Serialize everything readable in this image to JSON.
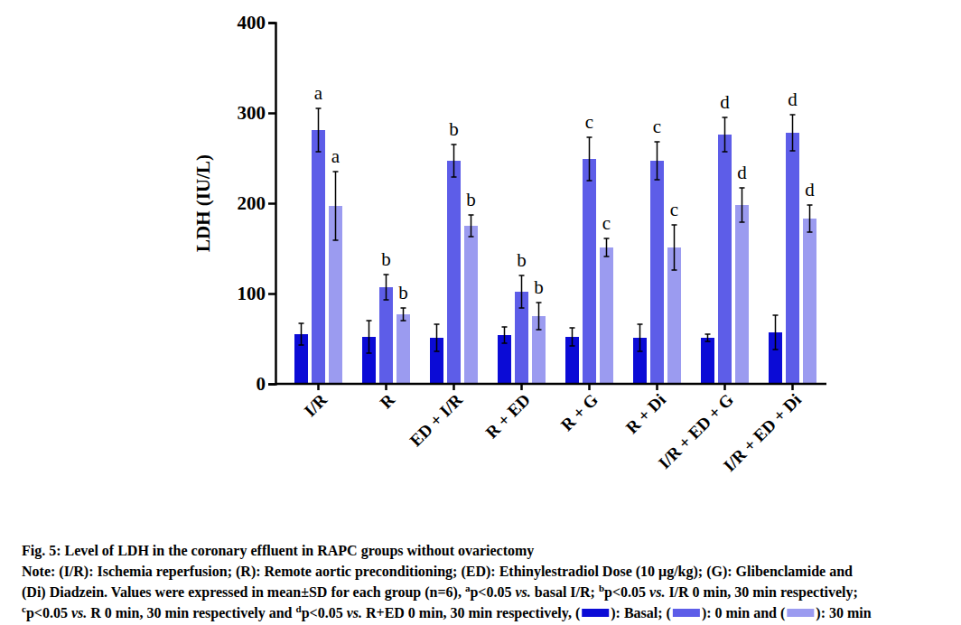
{
  "chart_data": {
    "type": "bar",
    "title": "Fig. 5: Level of LDH in the coronary effluent in RAPC groups without ovariectomy",
    "y_label": "LDH (IU/L)",
    "categories": [
      "I/R",
      "R",
      "ED + I/R",
      "R + ED",
      "R + G",
      "R + Di",
      "I/R + ED + G",
      "I/R + ED + Di"
    ],
    "series": [
      {
        "name": "Basal",
        "color": "#0b0bd6",
        "values": [
          55,
          52,
          51,
          54,
          52,
          51,
          51,
          57
        ],
        "errors": [
          12,
          18,
          15,
          9,
          10,
          15,
          4,
          19
        ]
      },
      {
        "name": "0 min",
        "color": "#5d5de8",
        "values": [
          281,
          107,
          247,
          102,
          249,
          247,
          276,
          278
        ],
        "errors": [
          24,
          14,
          18,
          18,
          24,
          21,
          19,
          20
        ],
        "significance": [
          "a",
          "b",
          "b",
          "b",
          "c",
          "c",
          "d",
          "d"
        ]
      },
      {
        "name": "30 min",
        "color": "#9b9bf0",
        "values": [
          197,
          77,
          175,
          75,
          151,
          151,
          198,
          183
        ],
        "errors": [
          38,
          7,
          12,
          15,
          10,
          25,
          19,
          15
        ],
        "significance": [
          "a",
          "b",
          "b",
          "b",
          "c",
          "c",
          "d",
          "d"
        ]
      }
    ],
    "ylim": [
      0,
      400
    ],
    "yticks": [
      0,
      100,
      200,
      300,
      400
    ],
    "grid": false,
    "note": [
      [
        {
          "text": "Note: (I/R): Ischemia reperfusion; (R): Remote aortic preconditioning; (ED): Ethinylestradiol Dose (10 μg/kg); (G): Glibenclamide and"
        }
      ],
      [
        {
          "text": "(Di) Diadzein. Values were expressed in mean±SD for each group (n=6), "
        },
        {
          "sup": "a"
        },
        {
          "text": "p<0.05 "
        },
        {
          "text": "vs.",
          "italic": true
        },
        {
          "text": " basal I/R; "
        },
        {
          "sup": "b"
        },
        {
          "text": "p<0.05 "
        },
        {
          "text": "vs.",
          "italic": true
        },
        {
          "text": " I/R 0 min, 30 min respectively;"
        }
      ],
      [
        {
          "sup": "c"
        },
        {
          "text": "p<0.05 "
        },
        {
          "text": "vs.",
          "italic": true
        },
        {
          "text": " R 0 min, 30 min respectively and "
        },
        {
          "sup": "d"
        },
        {
          "text": "p<0.05 "
        },
        {
          "text": "vs.",
          "italic": true
        },
        {
          "text": " R+ED 0 min, 30 min respectively, ("
        },
        {
          "swatch": 0
        },
        {
          "text": "): "
        },
        {
          "series_name": 0
        },
        {
          "text": "; ("
        },
        {
          "swatch": 1
        },
        {
          "text": "): "
        },
        {
          "series_name": 1
        },
        {
          "text": " and ("
        },
        {
          "swatch": 2
        },
        {
          "text": "): "
        },
        {
          "series_name": 2
        }
      ]
    ]
  }
}
